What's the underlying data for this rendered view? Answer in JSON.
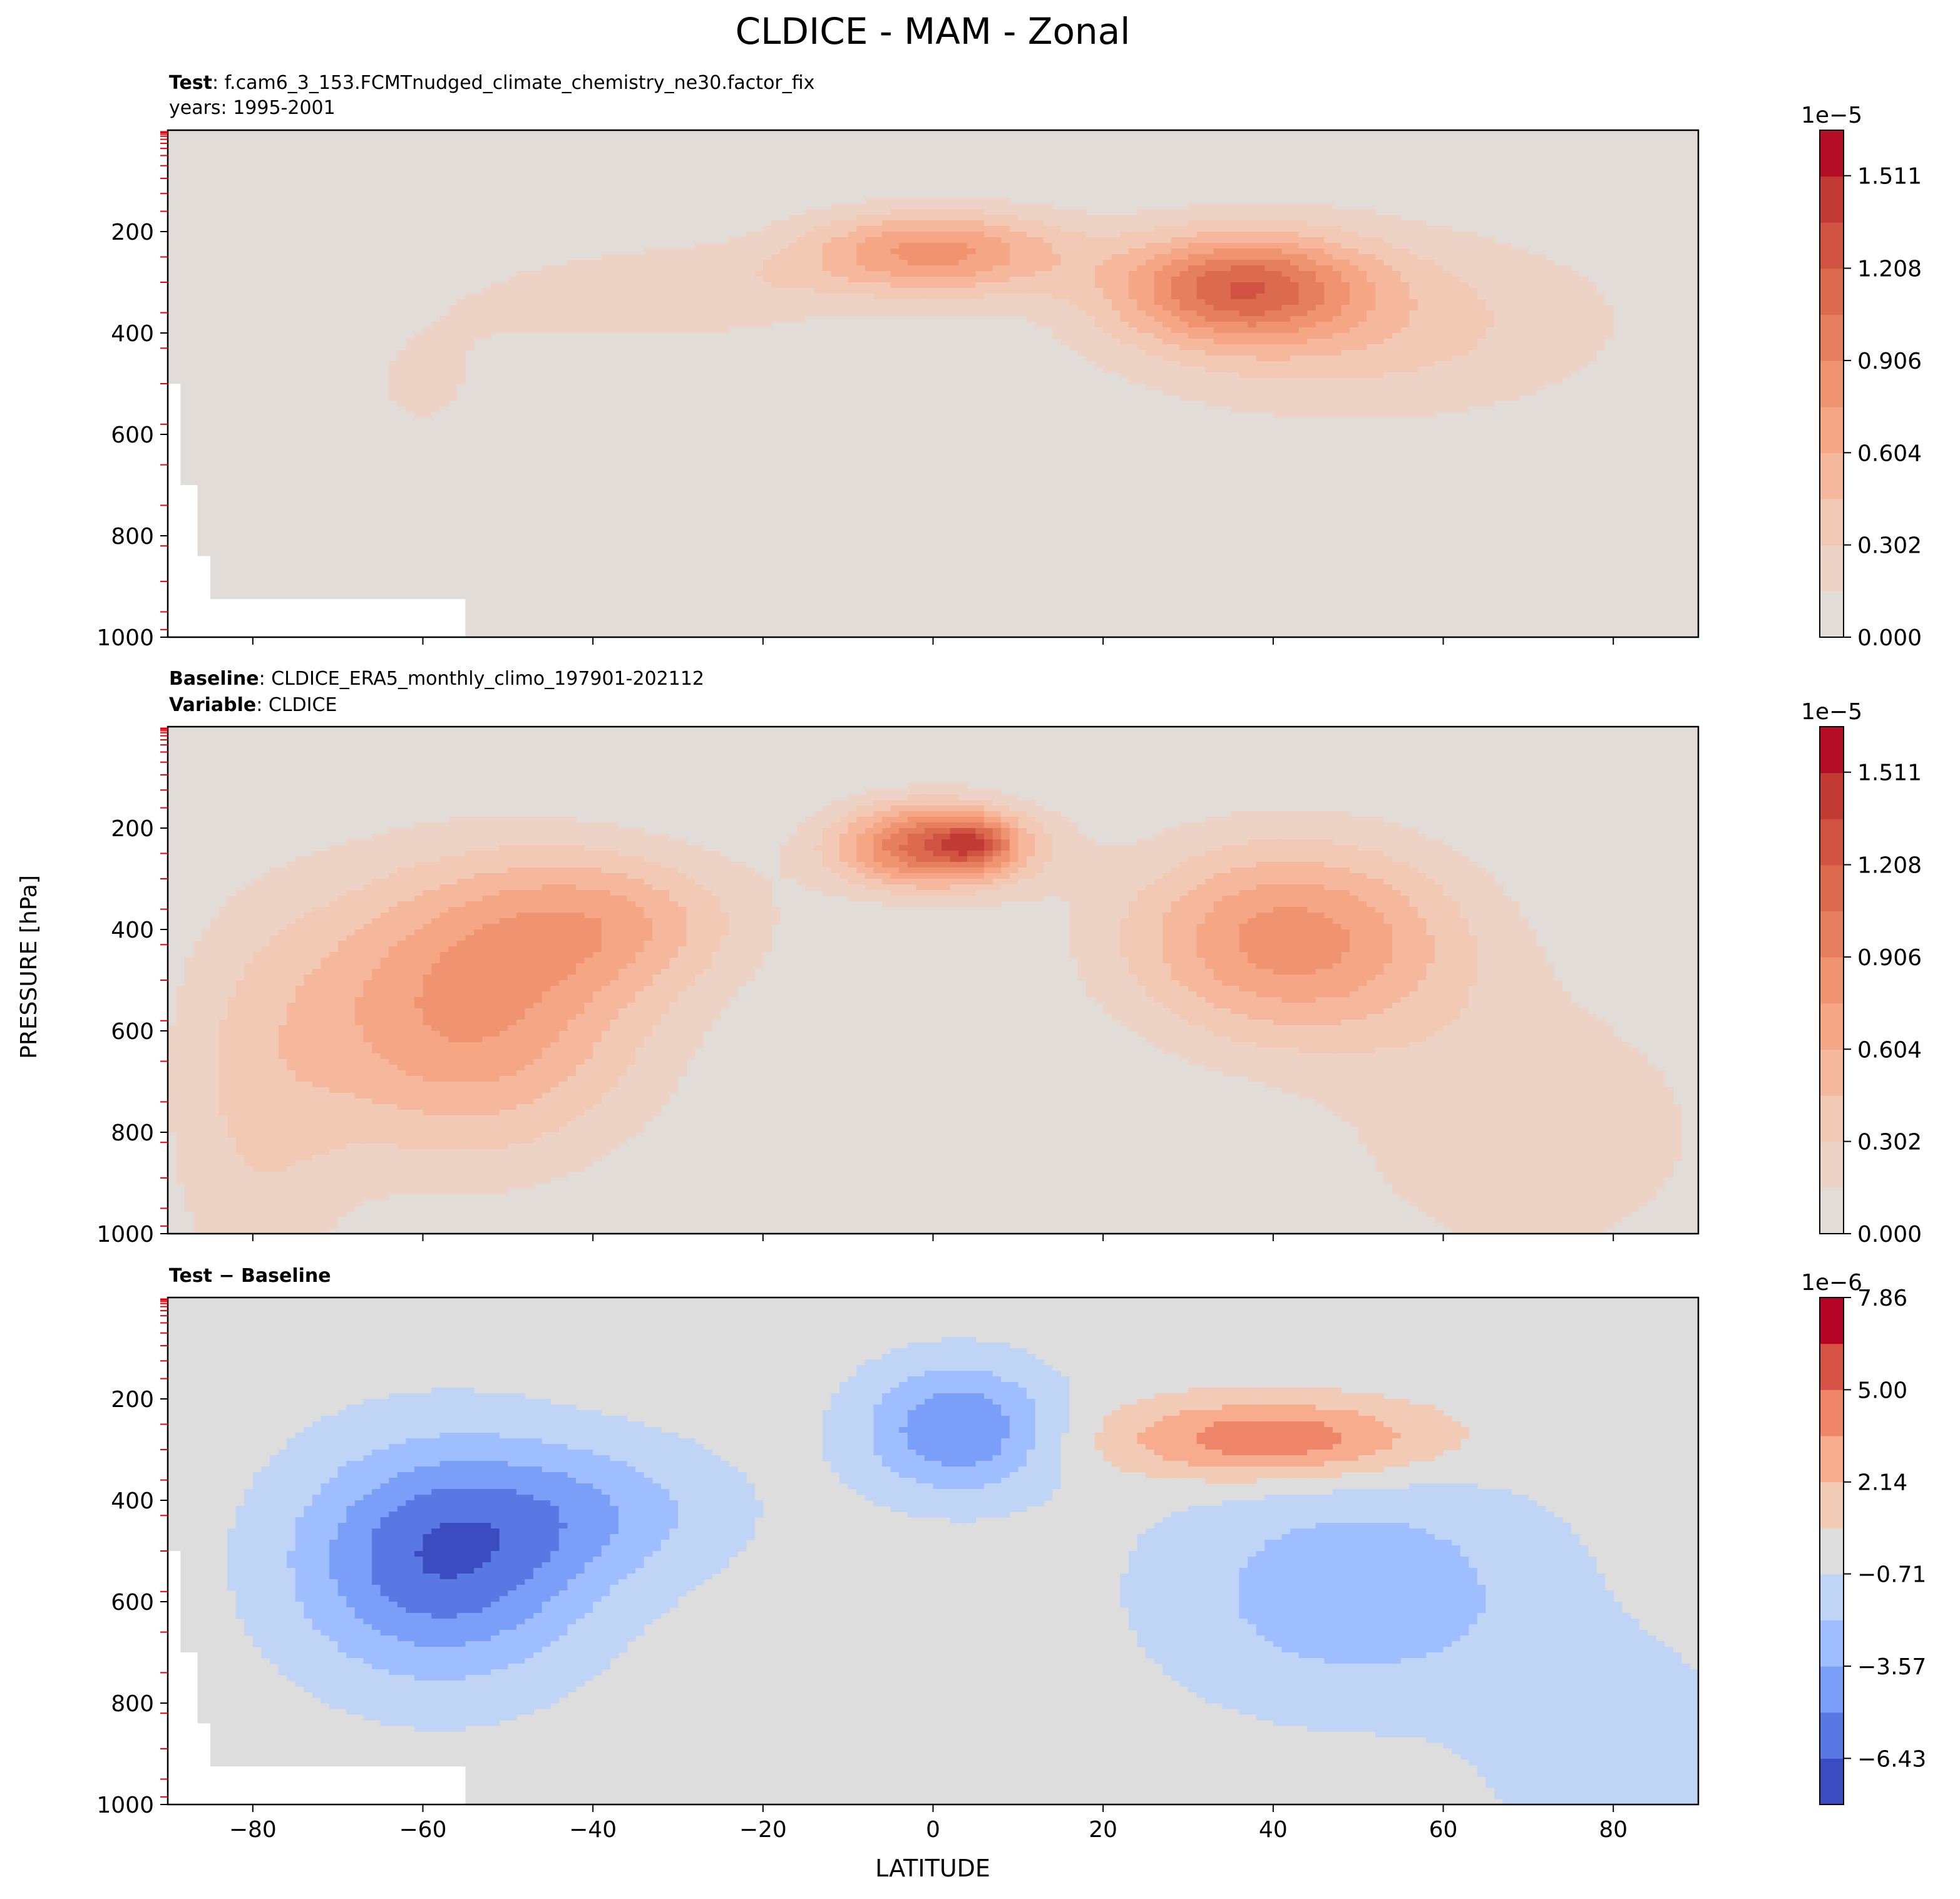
{
  "figure": {
    "title": "CLDICE - MAM - Zonal",
    "xlabel": "LATITUDE",
    "ylabel": "PRESSURE [hPa]"
  },
  "chart_data": [
    {
      "type": "heatmap",
      "panel": "test",
      "header": [
        {
          "bold": "Test",
          "text": ": f.cam6_3_153.FCMTnudged_climate_chemistry_ne30.factor_fix"
        },
        {
          "bold": "",
          "text": "years: 1995-2001"
        }
      ],
      "xlim": [
        -90,
        90
      ],
      "ylim": [
        1000,
        0
      ],
      "x_ticks": [
        "-80",
        "-60",
        "-40",
        "-20",
        "0",
        "20",
        "40",
        "60",
        "80"
      ],
      "x_tick_values": [
        -80,
        -60,
        -40,
        -20,
        0,
        20,
        40,
        60,
        80
      ],
      "y_ticks": [
        "200",
        "400",
        "600",
        "800",
        "1000"
      ],
      "y_tick_values": [
        200,
        400,
        600,
        800,
        1000
      ],
      "colorbar": {
        "exponent": "1e−5",
        "ticks": [
          "0.000",
          "0.302",
          "0.604",
          "0.906",
          "1.208",
          "1.511"
        ],
        "tick_values": [
          0,
          0.302,
          0.604,
          0.906,
          1.208,
          1.511
        ],
        "range": [
          0,
          1.66
        ],
        "levels": 11,
        "colors": [
          "#e2dcd8",
          "#ecd3c6",
          "#f2c9b4",
          "#f5b89c",
          "#f4a685",
          "#ef9371",
          "#e67f5f",
          "#dc6a4f",
          "#cf5340",
          "#c13a33",
          "#b40d26"
        ]
      },
      "blobs": [
        {
          "lat": 0,
          "p": 240,
          "slat": 11,
          "sp": 60,
          "amp": 0.78
        },
        {
          "lat": 36,
          "p": 310,
          "slat": 10,
          "sp": 75,
          "amp": 0.95
        },
        {
          "lat": 50,
          "p": 380,
          "slat": 22,
          "sp": 140,
          "amp": 0.38
        },
        {
          "lat": -30,
          "p": 320,
          "slat": 14,
          "sp": 70,
          "amp": 0.28
        },
        {
          "lat": -60,
          "p": 500,
          "slat": 12,
          "sp": 180,
          "amp": 0.16
        }
      ],
      "missing": "topography"
    },
    {
      "type": "heatmap",
      "panel": "baseline",
      "header": [
        {
          "bold": "Baseline",
          "text": ": CLDICE_ERA5_monthly_climo_197901-202112"
        },
        {
          "bold": "Variable",
          "text": ": CLDICE"
        }
      ],
      "xlim": [
        -90,
        90
      ],
      "ylim": [
        1000,
        0
      ],
      "x_ticks": [
        "-80",
        "-60",
        "-40",
        "-20",
        "0",
        "20",
        "40",
        "60",
        "80"
      ],
      "x_tick_values": [
        -80,
        -60,
        -40,
        -20,
        0,
        20,
        40,
        60,
        80
      ],
      "y_ticks": [
        "200",
        "400",
        "600",
        "800",
        "1000"
      ],
      "y_tick_values": [
        200,
        400,
        600,
        800,
        1000
      ],
      "colorbar": {
        "exponent": "1e−5",
        "ticks": [
          "0.000",
          "0.302",
          "0.604",
          "0.906",
          "1.208",
          "1.511"
        ],
        "tick_values": [
          0,
          0.302,
          0.604,
          0.906,
          1.208,
          1.511
        ],
        "range": [
          0,
          1.66
        ],
        "levels": 11,
        "colors": [
          "#e2dcd8",
          "#ecd3c6",
          "#f2c9b4",
          "#f5b89c",
          "#f4a685",
          "#ef9371",
          "#e67f5f",
          "#dc6a4f",
          "#cf5340",
          "#c13a33",
          "#b40d26"
        ]
      },
      "blobs": [
        {
          "lat": 0,
          "p": 235,
          "slat": 8,
          "sp": 60,
          "amp": 1.15
        },
        {
          "lat": 5,
          "p": 230,
          "slat": 3,
          "sp": 30,
          "amp": 0.5
        },
        {
          "lat": 42,
          "p": 420,
          "slat": 14,
          "sp": 140,
          "amp": 0.82
        },
        {
          "lat": -55,
          "p": 560,
          "slat": 15,
          "sp": 200,
          "amp": 0.78
        },
        {
          "lat": -38,
          "p": 380,
          "slat": 12,
          "sp": 100,
          "amp": 0.45
        },
        {
          "lat": 70,
          "p": 800,
          "slat": 18,
          "sp": 220,
          "amp": 0.25
        },
        {
          "lat": -80,
          "p": 800,
          "slat": 8,
          "sp": 300,
          "amp": 0.25
        }
      ],
      "missing": "none"
    },
    {
      "type": "heatmap",
      "panel": "difference",
      "header": [
        {
          "bold": "Test − Baseline",
          "text": ""
        }
      ],
      "xlim": [
        -90,
        90
      ],
      "ylim": [
        1000,
        0
      ],
      "x_ticks": [
        "−80",
        "−60",
        "−40",
        "−20",
        "0",
        "20",
        "40",
        "60",
        "80"
      ],
      "x_tick_values": [
        -80,
        -60,
        -40,
        -20,
        0,
        20,
        40,
        60,
        80
      ],
      "y_ticks": [
        "200",
        "400",
        "600",
        "800",
        "1000"
      ],
      "y_tick_values": [
        200,
        400,
        600,
        800,
        1000
      ],
      "colorbar": {
        "exponent": "1e−6",
        "ticks": [
          "−6.43",
          "−3.57",
          "−0.71",
          "2.14",
          "5.00",
          "7.86"
        ],
        "tick_values": [
          -6.43,
          -3.57,
          -0.71,
          2.14,
          5.0,
          7.86
        ],
        "range": [
          -7.86,
          7.86
        ],
        "levels": 11,
        "colors": [
          "#3b4cc0",
          "#5a78e4",
          "#7b9ff9",
          "#9ebeff",
          "#c0d4f5",
          "#dddddd",
          "#f2cbb7",
          "#f7ac8e",
          "#ee8468",
          "#d65244",
          "#b40426"
        ]
      },
      "blobs": [
        {
          "lat": -58,
          "p": 520,
          "slat": 12,
          "sp": 160,
          "amp": -6.2
        },
        {
          "lat": -40,
          "p": 420,
          "slat": 12,
          "sp": 100,
          "amp": -2.5
        },
        {
          "lat": 3,
          "p": 260,
          "slat": 8,
          "sp": 90,
          "amp": -5.0
        },
        {
          "lat": 50,
          "p": 580,
          "slat": 16,
          "sp": 160,
          "amp": -3.2
        },
        {
          "lat": 40,
          "p": 280,
          "slat": 13,
          "sp": 55,
          "amp": 5.0
        },
        {
          "lat": 80,
          "p": 900,
          "slat": 10,
          "sp": 140,
          "amp": -2.0
        }
      ],
      "missing": "topography"
    }
  ]
}
